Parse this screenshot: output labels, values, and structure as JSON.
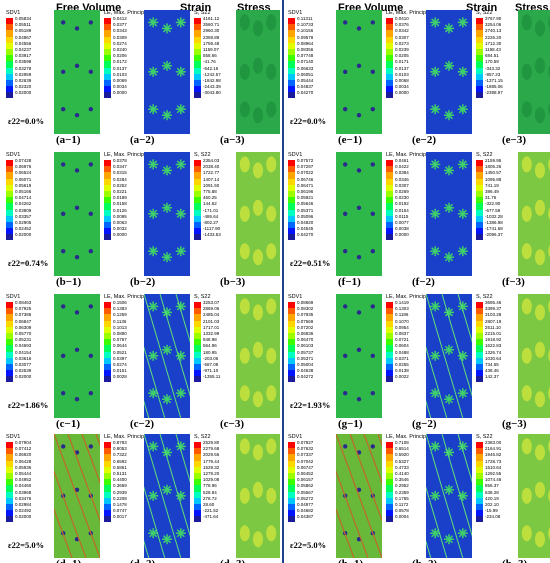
{
  "headers": {
    "free_volume": "Free Volume",
    "strain": "Strain",
    "stress": "Stress"
  },
  "colors": {
    "divider": "#1f3f8f",
    "field_green": "#2fb84a",
    "field_blue": "#1a3fc8",
    "stress_green": "#7cc843"
  },
  "legend_titles": {
    "sdv": "SDV1",
    "le": "LE, Max. Principal",
    "s22": "S, S22"
  },
  "rows": [
    {
      "left": {
        "strain_text": "ε22=0.0%",
        "labels": [
          "(a−1)",
          "(a−2)",
          "(a−3)"
        ],
        "sdv_values": [
          "0.05834",
          "0.05511",
          "0.05189",
          "0.04867",
          "0.04556",
          "0.04237",
          "0.03917",
          "0.03598",
          "0.03278",
          "0.02959",
          "0.02639",
          "0.02320",
          "0.02000"
        ],
        "le_values": [
          "0.0412",
          "0.0377",
          "0.0343",
          "0.0309",
          "0.0274",
          "0.0240",
          "0.0206",
          "0.0172",
          "0.0137",
          "0.0103",
          "0.0069",
          "0.0034",
          "0.0000"
        ],
        "s22_values": [
          "4161.12",
          "3560.71",
          "2960.30",
          "2359.89",
          "1759.48",
          "1159.07",
          "558.66",
          "-41.76",
          "-642.16",
          "-1242.57",
          "-1842.98",
          "-2443.39",
          "-3043.80"
        ]
      },
      "right": {
        "strain_text": "ε22=0.0%",
        "labels": [
          "(e−1)",
          "(e−2)",
          "(e−3)"
        ],
        "sdv_values": [
          "0.11311",
          "0.10733",
          "0.10156",
          "0.09578",
          "0.08964",
          "0.08356",
          "0.07748",
          "0.07140",
          "0.06633",
          "0.06051",
          "0.05444",
          "0.04837",
          "0.04270"
        ],
        "le_values": [
          "0.0410",
          "0.0376",
          "0.0342",
          "0.0307",
          "0.0273",
          "0.0239",
          "0.0205",
          "0.0171",
          "0.0137",
          "0.0103",
          "0.0068",
          "0.0034",
          "0.0000"
        ],
        "s22_values": [
          "3767.90",
          "3254.06",
          "2740.13",
          "2226.20",
          "1712.30",
          "1198.43",
          "684.51",
          "170.59",
          "-343.32",
          "-857.23",
          "-1371.15",
          "-1885.06",
          "-2398.97"
        ]
      }
    },
    {
      "left": {
        "strain_text": "ε22=0.74%",
        "labels": [
          "(b−1)",
          "(b−2)",
          "(b−3)"
        ],
        "sdv_values": [
          "0.07428",
          "0.06976",
          "0.06524",
          "0.06071",
          "0.05619",
          "0.05166",
          "0.04714",
          "0.04262",
          "0.03809",
          "0.03357",
          "0.02905",
          "0.02452",
          "0.02000"
        ],
        "le_values": [
          "0.0378",
          "0.0347",
          "0.0315",
          "0.0284",
          "0.0252",
          "0.0221",
          "0.0189",
          "0.0158",
          "0.0126",
          "0.0095",
          "0.0063",
          "0.0032",
          "0.0000"
        ],
        "s22_values": [
          "2354.03",
          "2038.40",
          "1722.77",
          "1407.14",
          "1091.50",
          "775.88",
          "460.25",
          "144.62",
          "-171.01",
          "-486.64",
          "-802.27",
          "-1117.90",
          "-1433.53"
        ]
      },
      "right": {
        "strain_text": "ε22=0.51%",
        "labels": [
          "(f−1)",
          "(f−2)",
          "(f−3)"
        ],
        "sdv_values": [
          "0.07572",
          "0.07297",
          "0.07022",
          "0.06746",
          "0.06471",
          "0.06196",
          "0.05921",
          "0.05646",
          "0.05371",
          "0.05096",
          "0.04820",
          "0.04545",
          "0.04270"
        ],
        "le_values": [
          "0.0461",
          "0.0422",
          "0.0384",
          "0.0346",
          "0.0307",
          "0.0269",
          "0.0230",
          "0.0192",
          "0.0154",
          "0.0115",
          "0.0077",
          "0.0038",
          "0.0000"
        ],
        "s22_values": [
          "2159.95",
          "1805.26",
          "1450.57",
          "1095.88",
          "741.19",
          "386.49",
          "31.76",
          "-322.90",
          "-677.59",
          "-1032.28",
          "-1386.98",
          "-1741.68",
          "-2096.37"
        ]
      }
    },
    {
      "left": {
        "strain_text": "ε22=1.86%",
        "labels": [
          "(c−1)",
          "(c−2)",
          "(c−3)"
        ],
        "sdv_values": [
          "0.08463",
          "0.07925",
          "0.07386",
          "0.06847",
          "0.06309",
          "0.05770",
          "0.05231",
          "0.04693",
          "0.04154",
          "0.03616",
          "0.03077",
          "0.02539",
          "0.02000"
        ],
        "le_values": [
          "0.1506",
          "0.1383",
          "0.1259",
          "0.1136",
          "0.1013",
          "0.0890",
          "0.0767",
          "0.0644",
          "0.0521",
          "0.0397",
          "0.0274",
          "0.0151",
          "0.0028"
        ],
        "s22_values": [
          "3253.07",
          "2869.06",
          "2485.04",
          "2101.03",
          "1717.01",
          "1332.99",
          "948.98",
          "564.96",
          "180.95",
          "-203.06",
          "-587.08",
          "-971.10",
          "-1355.11"
        ]
      },
      "right": {
        "strain_text": "ε22=1.93%",
        "labels": [
          "(g−1)",
          "(g−2)",
          "(g−3)"
        ],
        "sdv_values": [
          "0.08669",
          "0.08302",
          "0.07935",
          "0.07569",
          "0.07202",
          "0.06836",
          "0.06470",
          "0.06103",
          "0.05737",
          "0.05371",
          "0.05004",
          "0.04638",
          "0.04272"
        ],
        "le_values": [
          "0.1419",
          "0.1303",
          "0.1186",
          "0.1070",
          "0.0954",
          "0.0837",
          "0.0721",
          "0.0604",
          "0.0488",
          "0.0371",
          "0.0255",
          "0.0138",
          "0.0022"
        ],
        "s22_values": [
          "3695.46",
          "3399.37",
          "3103.28",
          "2807.19",
          "2511.10",
          "2215.01",
          "1918.92",
          "1622.83",
          "1326.74",
          "1030.64",
          "734.55",
          "438.46",
          "142.37"
        ]
      }
    },
    {
      "left": {
        "strain_text": "ε22=5.0%",
        "labels": [
          "(d−1)",
          "(d−2)",
          "(d−3)"
        ],
        "sdv_values": [
          "0.07904",
          "0.07412",
          "0.06920",
          "0.06428",
          "0.05936",
          "0.05444",
          "0.04952",
          "0.04460",
          "0.03968",
          "0.03476",
          "0.02984",
          "0.02492",
          "0.02000"
        ],
        "le_values": [
          "0.8783",
          "0.8053",
          "0.7322",
          "0.6592",
          "0.5861",
          "0.5131",
          "0.4400",
          "0.3669",
          "0.2939",
          "0.2208",
          "0.1478",
          "0.0747",
          "0.0017"
        ],
        "s22_values": [
          "2529.80",
          "2279.68",
          "2029.56",
          "1779.44",
          "1529.32",
          "1279.20",
          "1029.08",
          "778.96",
          "528.84",
          "278.72",
          "28.60",
          "-221.52",
          "-471.64"
        ]
      },
      "right": {
        "strain_text": "ε22=5.0%",
        "labels": [
          "(h−1)",
          "(h−2)",
          "(h−3)"
        ],
        "sdv_values": [
          "0.07927",
          "0.07632",
          "0.07337",
          "0.07042",
          "0.06747",
          "0.06452",
          "0.06157",
          "0.05862",
          "0.05567",
          "0.05272",
          "0.04977",
          "0.04682",
          "0.04387"
        ],
        "le_values": [
          "0.7108",
          "0.6514",
          "0.5920",
          "0.5327",
          "0.4733",
          "0.4140",
          "0.3546",
          "0.2952",
          "0.2359",
          "0.1765",
          "0.1172",
          "0.0578",
          "0.0004"
        ],
        "s22_values": [
          "2383.00",
          "2164.91",
          "1946.82",
          "1728.73",
          "1510.64",
          "1292.55",
          "1074.46",
          "856.37",
          "638.28",
          "420.19",
          "202.10",
          "-15.99",
          "-234.08"
        ]
      }
    }
  ]
}
